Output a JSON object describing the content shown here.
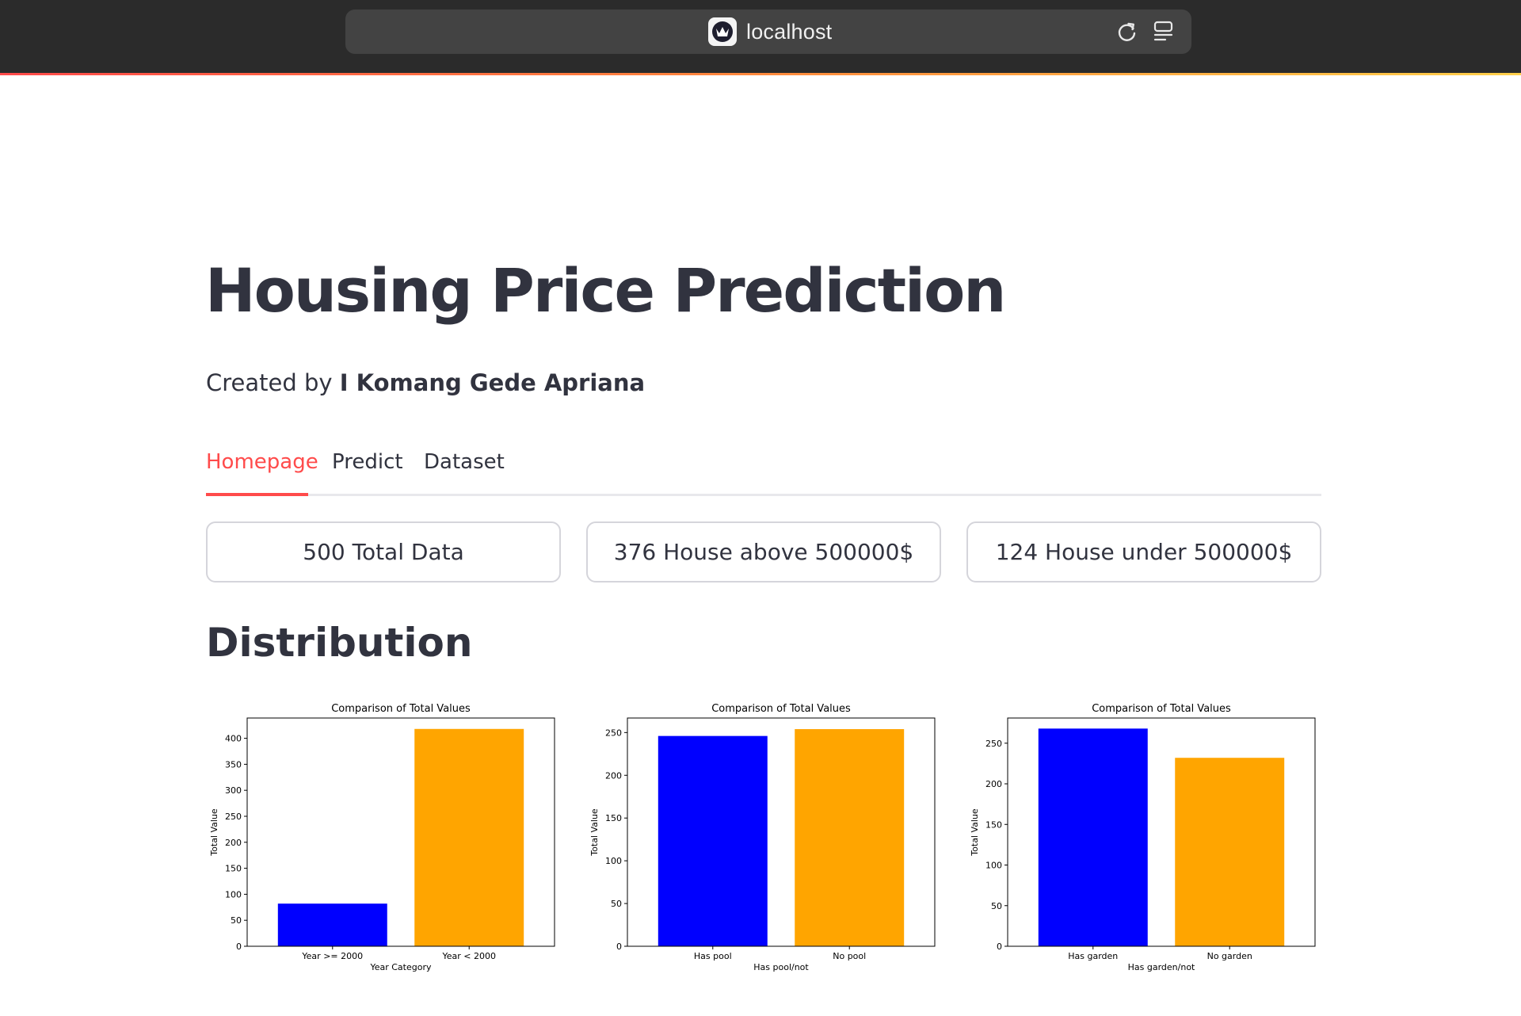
{
  "browser": {
    "url": "localhost",
    "favicon": "streamlit-crown-icon"
  },
  "page": {
    "title": "Housing Price Prediction",
    "subtitle_prefix": "Created by ",
    "author": "I Komang Gede Apriana"
  },
  "tabs": [
    {
      "label": "Homepage",
      "active": true
    },
    {
      "label": "Predict",
      "active": false
    },
    {
      "label": "Dataset",
      "active": false
    }
  ],
  "metrics": [
    {
      "label": "500 Total Data"
    },
    {
      "label": "376 House above 500000$"
    },
    {
      "label": "124 House under 500000$"
    }
  ],
  "section": {
    "title": "Distribution"
  },
  "colors": {
    "accent": "#ff4b4b",
    "bar_blue": "#0000ff",
    "bar_orange": "#ffa500"
  },
  "chart_data": [
    {
      "type": "bar",
      "title": "Comparison of Total Values",
      "xlabel": "Year Category",
      "ylabel": "Total Value",
      "categories": [
        "Year >= 2000",
        "Year < 2000"
      ],
      "values": [
        82,
        418
      ],
      "colors": [
        "#0000ff",
        "#ffa500"
      ],
      "ylim": [
        0,
        439
      ],
      "yticks": [
        0,
        50,
        100,
        150,
        200,
        250,
        300,
        350,
        400
      ],
      "grid": false
    },
    {
      "type": "bar",
      "title": "Comparison of Total Values",
      "xlabel": "Has pool/not",
      "ylabel": "Total Value",
      "categories": [
        "Has pool",
        "No pool"
      ],
      "values": [
        246,
        254
      ],
      "colors": [
        "#0000ff",
        "#ffa500"
      ],
      "ylim": [
        0,
        267
      ],
      "yticks": [
        0,
        50,
        100,
        150,
        200,
        250
      ],
      "grid": false
    },
    {
      "type": "bar",
      "title": "Comparison of Total Values",
      "xlabel": "Has garden/not",
      "ylabel": "Total Value",
      "categories": [
        "Has garden",
        "No garden"
      ],
      "values": [
        268,
        232
      ],
      "colors": [
        "#0000ff",
        "#ffa500"
      ],
      "ylim": [
        0,
        281
      ],
      "yticks": [
        0,
        50,
        100,
        150,
        200,
        250
      ],
      "grid": false
    }
  ]
}
